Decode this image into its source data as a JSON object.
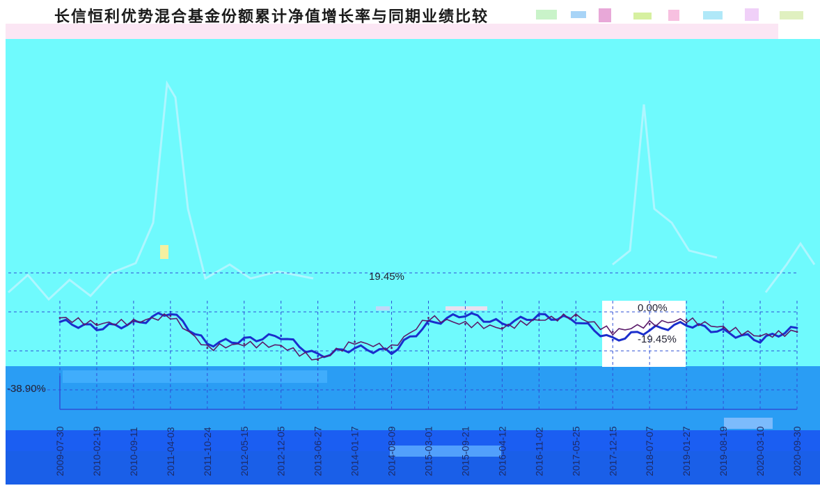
{
  "chart_data": {
    "type": "line",
    "title": "长信恒利优势混合基金份额累计净值增长率与同期业绩比较",
    "x": [
      "2009-07-30",
      "2010-02-19",
      "2010-09-11",
      "2011-04-03",
      "2011-10-24",
      "2012-05-15",
      "2012-12-05",
      "2013-06-27",
      "2014-01-17",
      "2014-08-09",
      "2015-03-01",
      "2015-09-21",
      "2016-04-12",
      "2016-11-02",
      "2017-05-25",
      "2017-12-15",
      "2018-07-07",
      "2019-01-27",
      "2019-08-19",
      "2020-03-10",
      "2020-09-30"
    ],
    "x_tick_labels": [
      "2009-07-30",
      "2010-02-19",
      "2010-09-11",
      "2011-04-03",
      "2011-10-24",
      "2012-05-15",
      "2012-12-05",
      "2013-06-27",
      "2014-01-17",
      "2014-08-09",
      "2015-03-01",
      "2015-09-21",
      "2016-04-12",
      "2016-11-02",
      "2017-05-25",
      "2017-12-15",
      "2018-07-07",
      "2019-01-27",
      "2019-08-19",
      "2020-03-10",
      "2020-09-30"
    ],
    "y_tick_labels": [
      "19.45%",
      "0.00%",
      "-19.45%",
      "-38.90%"
    ],
    "ylim": [
      -38.9,
      19.45
    ],
    "grid": true,
    "series": [
      {
        "values": [
          -5,
          -8,
          -6,
          0,
          -16,
          -14,
          -12,
          -22,
          -18,
          -20,
          -6,
          -1,
          -6,
          -2,
          -4,
          -14,
          -9,
          -6,
          -10,
          -14,
          -8
        ]
      },
      {
        "values": [
          -3,
          -6,
          -5,
          -2,
          -18,
          -16,
          -17,
          -24,
          -15,
          -18,
          -3,
          -6,
          -8,
          -4,
          -2,
          -10,
          -6,
          -4,
          -8,
          -12,
          -10
        ]
      }
    ]
  },
  "colors": {
    "background": "#6ffafd",
    "grid": "#2e4fd6",
    "fund_line": "#1a2ecc",
    "benchmark_line": "#5a1a6a",
    "lower_band": "#2a9df4",
    "bottom_band": "#1b5ef2"
  }
}
